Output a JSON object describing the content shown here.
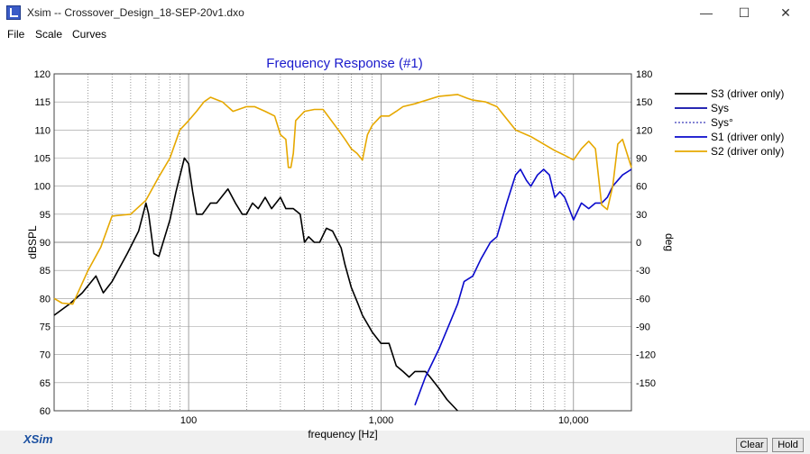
{
  "window": {
    "title": "Xsim -- Crossover_Design_18-SEP-20v1.dxo",
    "minimize": "—",
    "maximize": "☐",
    "close": "✕"
  },
  "menu": [
    "File",
    "Scale",
    "Curves"
  ],
  "colors": {
    "s3": "#000000",
    "sys": "#0a0aa8",
    "s1": "#0a0acc",
    "s2": "#e6a800",
    "title": "#1a1acc"
  },
  "chart_data": {
    "type": "line",
    "title": "Frequency Response (#1)",
    "xlabel": "frequency [Hz]",
    "ylabel": "dBSPL",
    "y2label": "deg",
    "x_scale": "log",
    "xlim": [
      20,
      20000
    ],
    "ylim": [
      60,
      120
    ],
    "y2lim": [
      -180,
      180
    ],
    "xticks": [
      100,
      1000,
      10000
    ],
    "xticklabels": [
      "100",
      "1,000",
      "10,000"
    ],
    "yticks": [
      60,
      65,
      70,
      75,
      80,
      85,
      90,
      95,
      100,
      105,
      110,
      115,
      120
    ],
    "y2ticks": [
      180,
      150,
      120,
      90,
      60,
      30,
      0,
      -30,
      -60,
      -90,
      -120,
      -150
    ],
    "grid": true,
    "legend_position": "right",
    "legend": [
      {
        "label": "S3 (driver only)",
        "style": "solid",
        "color": "#000000"
      },
      {
        "label": "Sys",
        "style": "solid",
        "color": "#0a0aa8"
      },
      {
        "label": "Sys°",
        "style": "dotted",
        "color": "#0a0aa8"
      },
      {
        "label": "S1 (driver only)",
        "style": "solid",
        "color": "#0a0acc"
      },
      {
        "label": "S2 (driver only)",
        "style": "solid",
        "color": "#e6a800"
      }
    ],
    "series": [
      {
        "name": "S3 (driver only)",
        "color": "#000000",
        "axis": "left",
        "x": [
          20,
          24,
          28,
          33,
          36,
          40,
          48,
          55,
          60,
          62,
          66,
          70,
          80,
          86,
          95,
          100,
          105,
          110,
          118,
          130,
          140,
          160,
          175,
          190,
          200,
          215,
          230,
          250,
          270,
          300,
          320,
          350,
          380,
          400,
          420,
          450,
          480,
          520,
          560,
          620,
          650,
          700,
          760,
          800,
          900,
          1000,
          1100,
          1200,
          1300,
          1400,
          1500,
          1700,
          1800,
          2000,
          2200,
          2500
        ],
        "y": [
          77,
          79,
          81,
          84,
          81,
          83,
          88,
          92,
          97,
          95,
          88,
          87.5,
          94,
          99,
          105,
          104,
          99,
          95,
          95,
          97,
          97,
          99.5,
          97,
          95,
          95,
          97,
          96,
          98,
          96,
          98,
          96,
          96,
          95,
          90,
          91,
          90,
          90,
          92.5,
          92,
          89,
          86,
          82,
          79,
          77,
          74,
          72,
          72,
          68,
          67,
          66,
          67,
          67,
          66,
          64,
          62,
          60
        ]
      },
      {
        "name": "S1 (driver only)",
        "color": "#0a0acc",
        "axis": "left",
        "x": [
          1500,
          1700,
          2000,
          2300,
          2500,
          2700,
          3000,
          3300,
          3700,
          4000,
          4500,
          5000,
          5300,
          5700,
          6000,
          6500,
          7000,
          7500,
          8000,
          8500,
          9000,
          9500,
          10000,
          11000,
          12000,
          13000,
          14000,
          15000,
          16000,
          18000,
          20000
        ],
        "y": [
          61,
          66,
          71,
          76,
          79,
          83,
          84,
          87,
          90,
          91,
          97,
          102,
          103,
          101,
          100,
          102,
          103,
          102,
          98,
          99,
          98,
          96,
          94,
          97,
          96,
          97,
          97,
          98,
          100,
          102,
          103
        ]
      },
      {
        "name": "S2 (driver only)",
        "color": "#e6a800",
        "axis": "right",
        "x": [
          20,
          22,
          25,
          30,
          35,
          40,
          50,
          60,
          70,
          80,
          90,
          100,
          110,
          120,
          130,
          150,
          170,
          200,
          220,
          250,
          280,
          300,
          320,
          330,
          340,
          350,
          360,
          400,
          450,
          500,
          600,
          650,
          700,
          750,
          800,
          850,
          900,
          1000,
          1100,
          1200,
          1300,
          1500,
          2000,
          2500,
          2800,
          3000,
          3500,
          4000,
          5000,
          6000,
          7000,
          8000,
          9000,
          10000,
          11000,
          12000,
          13000,
          14000,
          15000,
          16000,
          17000,
          18000,
          20000
        ],
        "y": [
          -60,
          -65,
          -66,
          -30,
          -5,
          28,
          30,
          45,
          70,
          90,
          120,
          130,
          140,
          150,
          155,
          150,
          140,
          145,
          145,
          140,
          135,
          115,
          110,
          80,
          80,
          95,
          130,
          140,
          142,
          142,
          120,
          110,
          100,
          95,
          88,
          115,
          125,
          135,
          135,
          140,
          145,
          148,
          156,
          158,
          154,
          152,
          150,
          145,
          120,
          113,
          105,
          98,
          93,
          88,
          100,
          108,
          100,
          40,
          35,
          60,
          105,
          110,
          80
        ]
      }
    ]
  },
  "buttons": {
    "clear": "Clear",
    "hold": "Hold"
  },
  "logo": "XSim"
}
